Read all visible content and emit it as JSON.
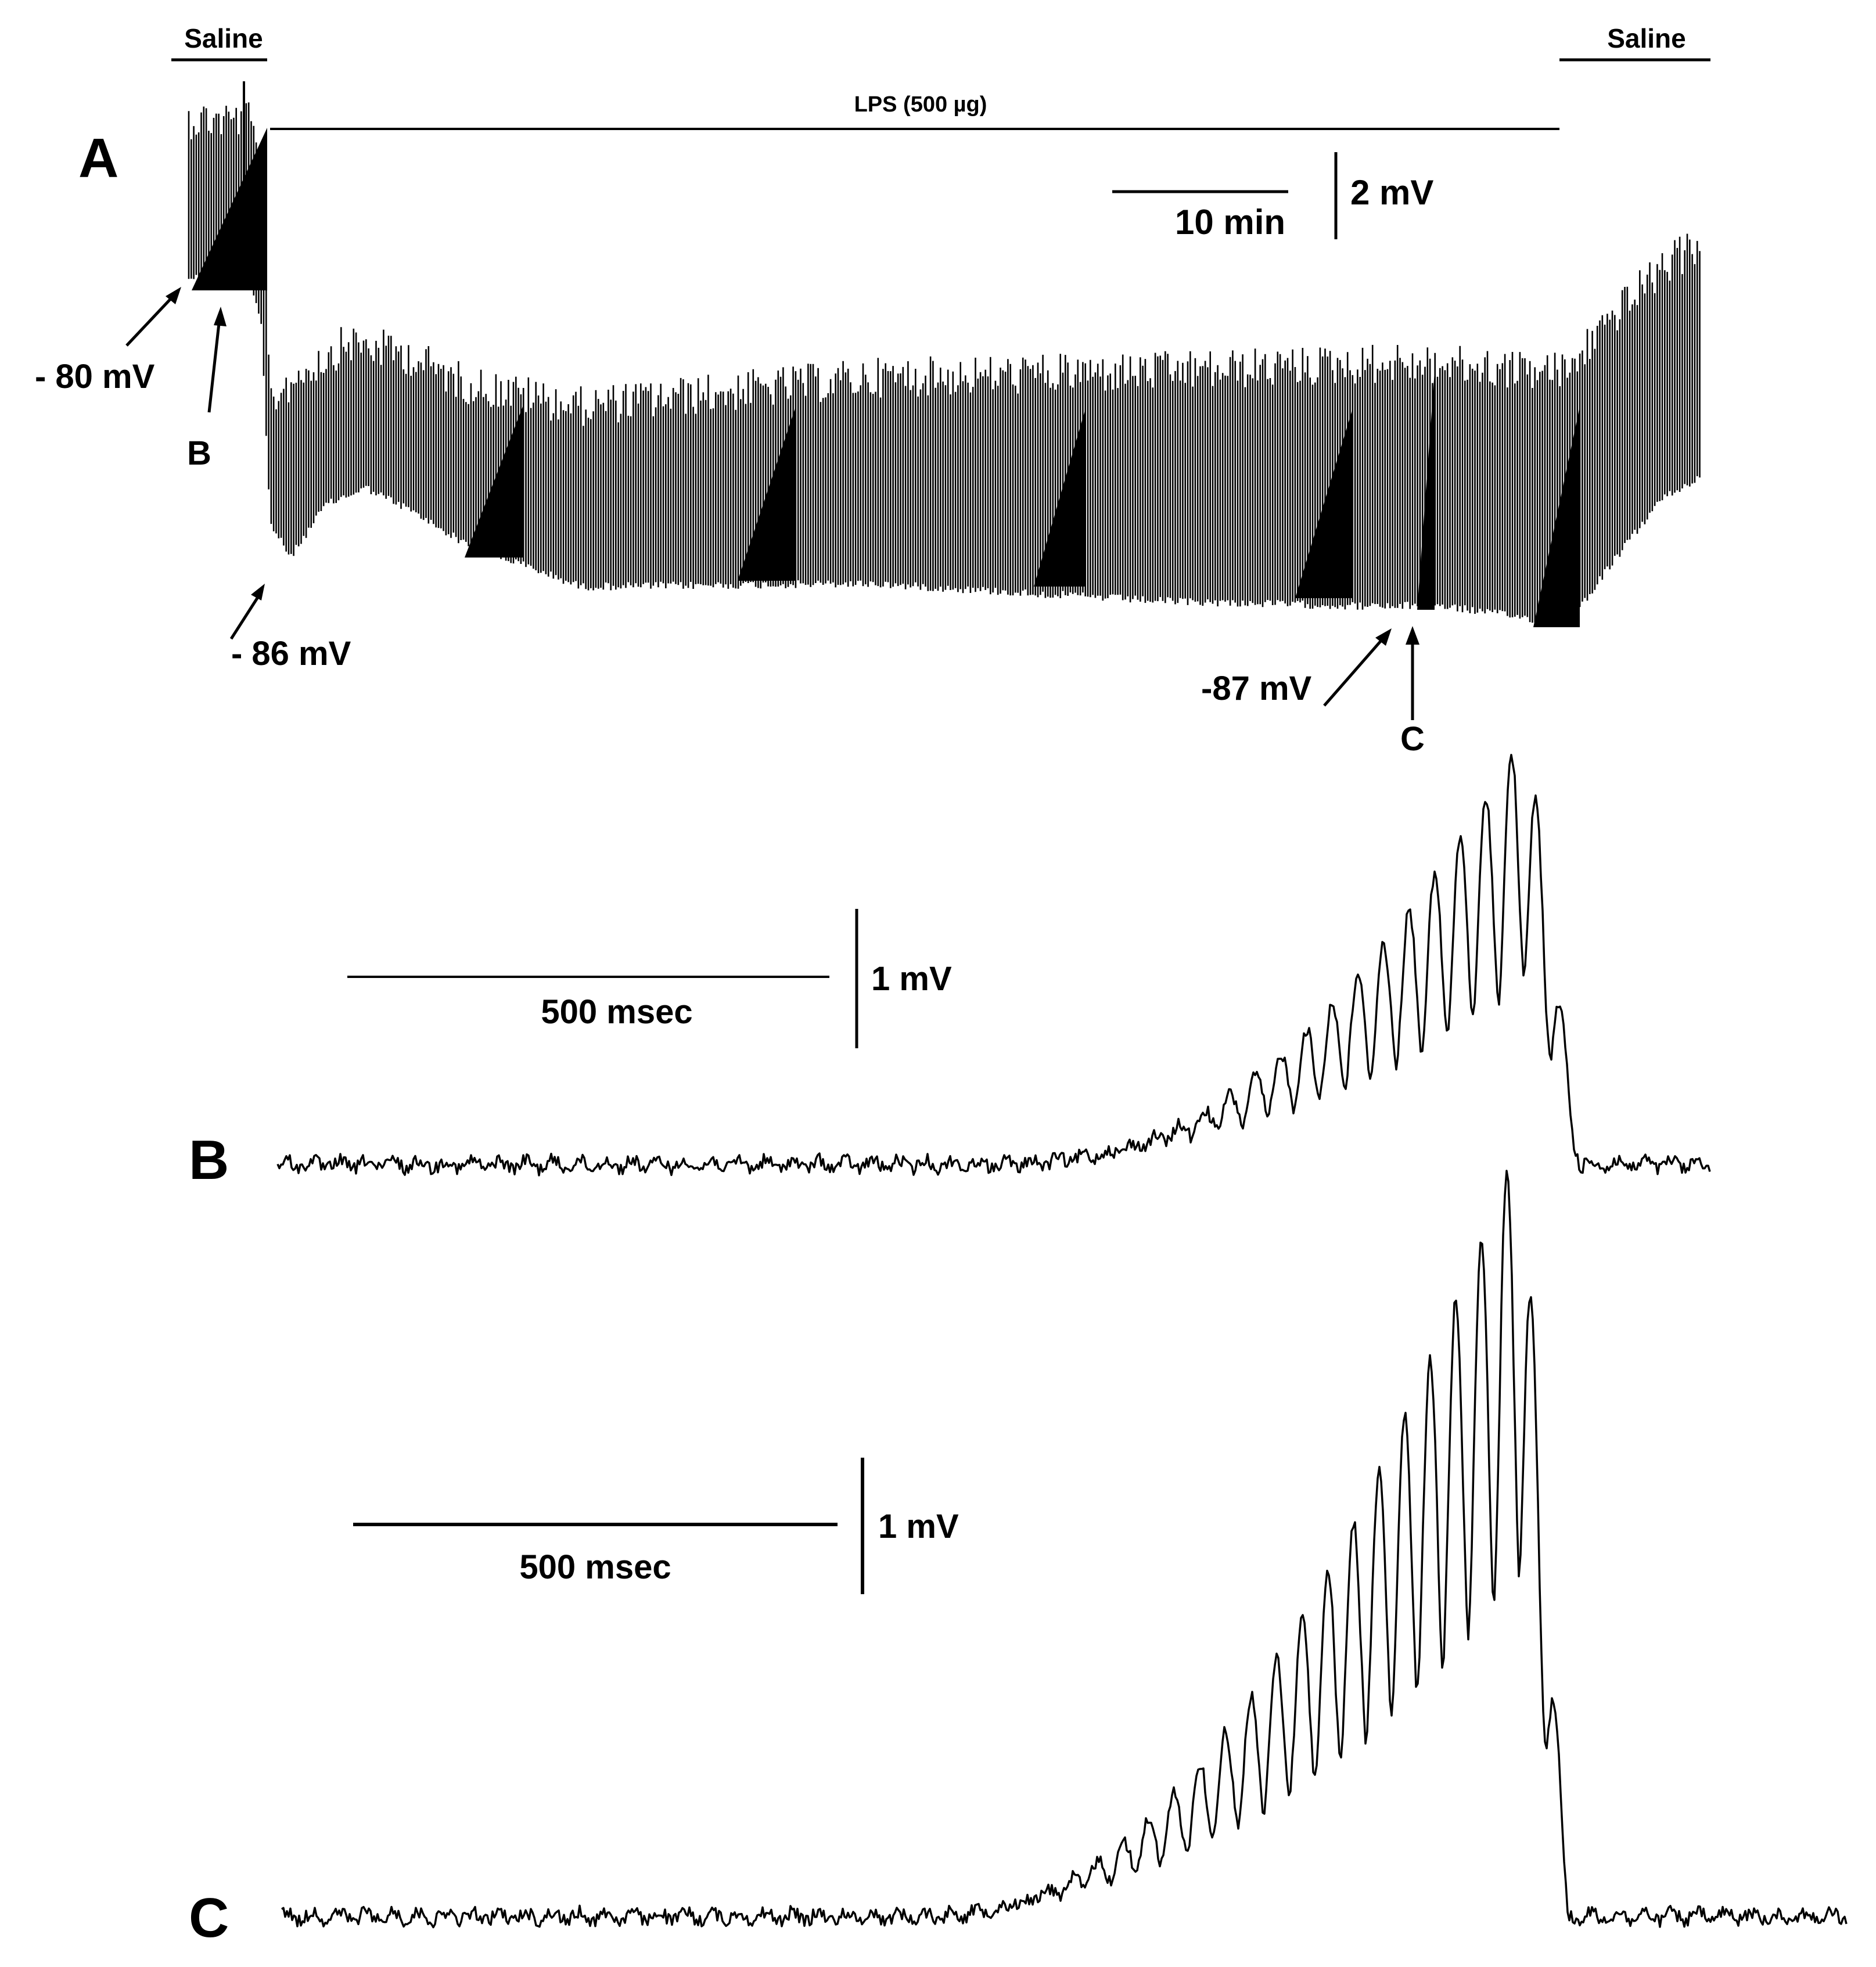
{
  "panels": {
    "A": {
      "letter": "A",
      "saline_left": "Saline",
      "saline_right": "Saline",
      "lps_label": "LPS (500 µg)",
      "scale_time": "10 min",
      "scale_voltage": "2 mV",
      "annotations": {
        "v_minus80": "- 80 mV",
        "v_minus86": "- 86 mV",
        "v_minus87": "-87 mV",
        "marker_b": "B",
        "marker_c": "C"
      }
    },
    "B": {
      "letter": "B",
      "scale_time": "500 msec",
      "scale_voltage": "1 mV"
    },
    "C": {
      "letter": "C",
      "scale_time": "500 msec",
      "scale_voltage": "1 mV"
    }
  },
  "colors": {
    "trace": "#000000",
    "background": "#ffffff"
  }
}
